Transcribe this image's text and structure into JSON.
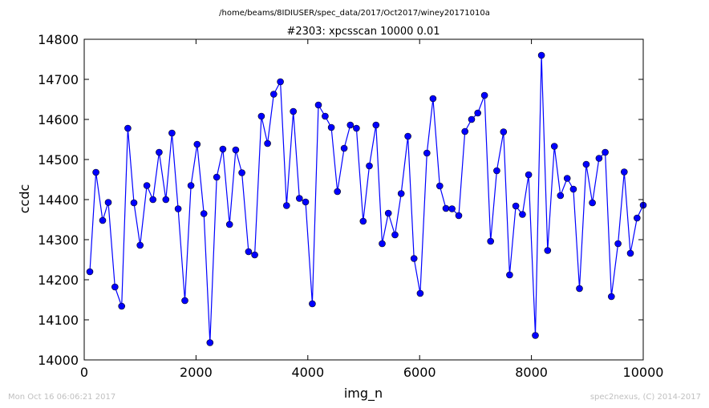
{
  "header": {
    "file_path": "/home/beams/8IDIUSER/spec_data/2017/Oct2017/winey20171010a"
  },
  "footer": {
    "timestamp": "Mon Oct 16 06:06:21 2017",
    "credit": "spec2nexus, (C) 2014-2017"
  },
  "colors": {
    "series": "#0000ff",
    "marker_edge": "#000000",
    "axes": "#000000",
    "footer_text": "#c0c0c0"
  },
  "chart_data": {
    "type": "line",
    "title": "#2303: xpcsscan 10000 0.01",
    "xlabel": "img_n",
    "ylabel": "ccdc",
    "xlim": [
      0,
      10000
    ],
    "ylim": [
      14000,
      14800
    ],
    "xticks": [
      0,
      2000,
      4000,
      6000,
      8000,
      10000
    ],
    "yticks": [
      14000,
      14100,
      14200,
      14300,
      14400,
      14500,
      14600,
      14700,
      14800
    ],
    "xtick_labels": [
      "0",
      "2000",
      "4000",
      "6000",
      "8000",
      "10000"
    ],
    "ytick_labels": [
      "14000",
      "14100",
      "14200",
      "14300",
      "14400",
      "14500",
      "14600",
      "14700",
      "14800"
    ],
    "grid": false,
    "legend": "none",
    "marker": "circle",
    "series": [
      {
        "x": [
          100,
          210,
          330,
          430,
          550,
          670,
          780,
          890,
          1000,
          1120,
          1230,
          1340,
          1460,
          1570,
          1680,
          1800,
          1910,
          2020,
          2140,
          2250,
          2370,
          2480,
          2600,
          2710,
          2820,
          2940,
          3050,
          3170,
          3280,
          3390,
          3510,
          3620,
          3740,
          3850,
          3960,
          4080,
          4190,
          4310,
          4420,
          4530,
          4650,
          4760,
          4870,
          4990,
          5100,
          5220,
          5330,
          5440,
          5560,
          5670,
          5790,
          5900,
          6010,
          6130,
          6240,
          6360,
          6470,
          6580,
          6700,
          6810,
          6930,
          7040,
          7160,
          7270,
          7380,
          7500,
          7610,
          7720,
          7840,
          7950,
          8070,
          8180,
          8290,
          8410,
          8520,
          8640,
          8750,
          8860,
          8980,
          9090,
          9210,
          9320,
          9430,
          9550,
          9660,
          9770,
          9890,
          10000
        ],
        "y": [
          14220,
          14468,
          14348,
          14393,
          14182,
          14134,
          14578,
          14392,
          14286,
          14435,
          14400,
          14518,
          14400,
          14566,
          14377,
          14148,
          14435,
          14538,
          14365,
          14043,
          14456,
          14526,
          14338,
          14524,
          14467,
          14270,
          14262,
          14608,
          14540,
          14663,
          14694,
          14385,
          14620,
          14403,
          14394,
          14140,
          14636,
          14608,
          14580,
          14420,
          14528,
          14586,
          14578,
          14346,
          14484,
          14586,
          14290,
          14366,
          14312,
          14415,
          14558,
          14253,
          14166,
          14516,
          14652,
          14434,
          14378,
          14377,
          14360,
          14570,
          14600,
          14616,
          14660,
          14296,
          14472,
          14569,
          14212,
          14384,
          14363,
          14462,
          14061,
          14760,
          14273,
          14533,
          14410,
          14453,
          14426,
          14178,
          14488,
          14392,
          14503,
          14518,
          14158,
          14290,
          14469,
          14266,
          14354,
          14386
        ]
      }
    ]
  }
}
